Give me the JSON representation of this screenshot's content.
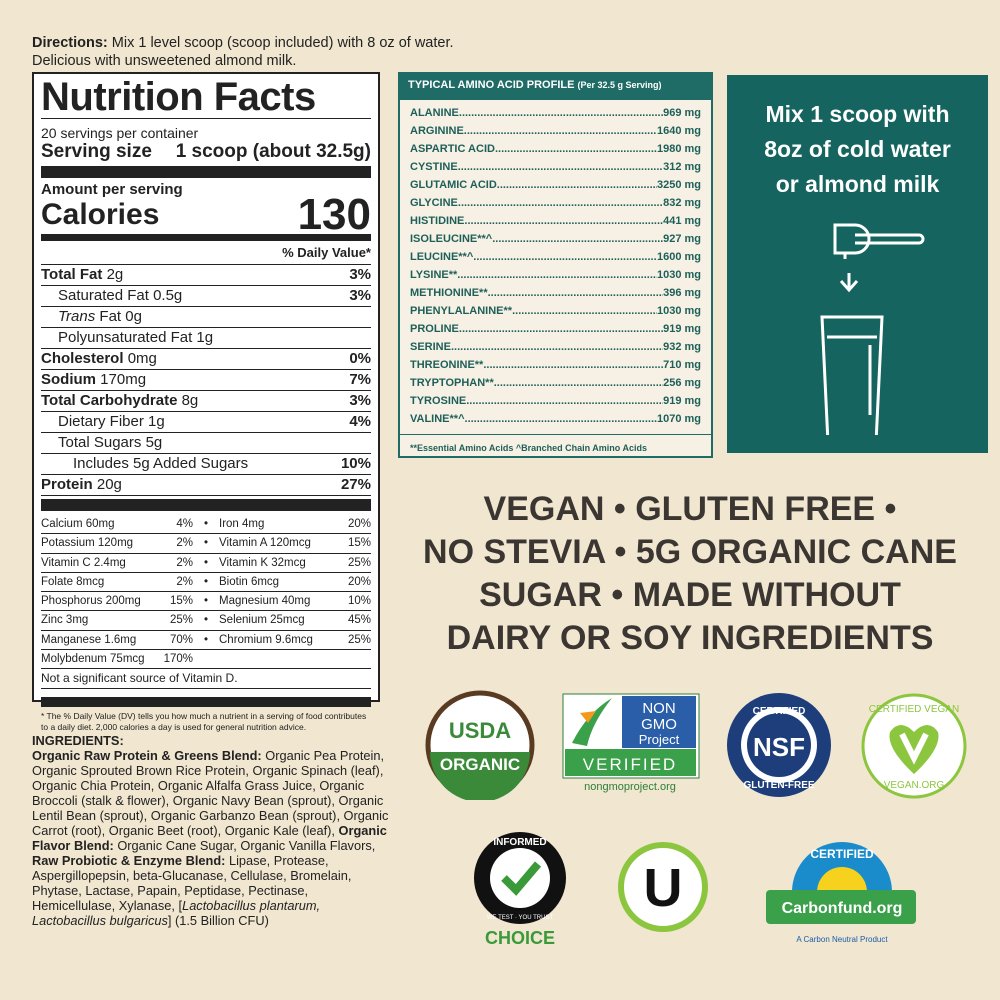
{
  "directions": {
    "label": "Directions:",
    "line1": "Mix 1 level scoop (scoop included) with 8 oz of water.",
    "line2": "Delicious with unsweetened almond milk."
  },
  "nutrition": {
    "title": "Nutrition Facts",
    "servings": "20 servings per container",
    "serving_size_label": "Serving size",
    "serving_size": "1 scoop (about 32.5g)",
    "amount_per_serving": "Amount per serving",
    "calories_label": "Calories",
    "calories": "130",
    "dv_header": "% Daily Value*",
    "rows": [
      {
        "name": "Total Fat",
        "amount": "2g",
        "pct": "3%",
        "bold": true,
        "indent": 0
      },
      {
        "name": "Saturated Fat",
        "amount": "0.5g",
        "pct": "3%",
        "bold": false,
        "indent": 1
      },
      {
        "name": "Trans",
        "amount": "Fat 0g",
        "pct": "",
        "bold": false,
        "indent": 1,
        "italic": true
      },
      {
        "name": "Polyunsaturated Fat",
        "amount": "1g",
        "pct": "",
        "bold": false,
        "indent": 1
      },
      {
        "name": "Cholesterol",
        "amount": "0mg",
        "pct": "0%",
        "bold": true,
        "indent": 0
      },
      {
        "name": "Sodium",
        "amount": "170mg",
        "pct": "7%",
        "bold": true,
        "indent": 0
      },
      {
        "name": "Total Carbohydrate",
        "amount": "8g",
        "pct": "3%",
        "bold": true,
        "indent": 0
      },
      {
        "name": "Dietary Fiber",
        "amount": "1g",
        "pct": "4%",
        "bold": false,
        "indent": 1
      },
      {
        "name": "Total Sugars",
        "amount": "5g",
        "pct": "",
        "bold": false,
        "indent": 1
      },
      {
        "name": "Includes 5g Added Sugars",
        "amount": "",
        "pct": "10%",
        "bold": false,
        "indent": 2
      },
      {
        "name": "Protein",
        "amount": "20g",
        "pct": "27%",
        "bold": true,
        "indent": 0
      }
    ],
    "minerals": [
      [
        "Calcium 60mg",
        "4%",
        "Iron 4mg",
        "20%"
      ],
      [
        "Potassium 120mg",
        "2%",
        "Vitamin A 120mcg",
        "15%"
      ],
      [
        "Vitamin C 2.4mg",
        "2%",
        "Vitamin K 32mcg",
        "25%"
      ],
      [
        "Folate 8mcg",
        "2%",
        "Biotin 6mcg",
        "20%"
      ],
      [
        "Phosphorus 200mg",
        "15%",
        "Magnesium 40mg",
        "10%"
      ],
      [
        "Zinc 3mg",
        "25%",
        "Selenium 25mcg",
        "45%"
      ],
      [
        "Manganese 1.6mg",
        "70%",
        "Chromium 9.6mcg",
        "25%"
      ],
      [
        "Molybdenum 75mcg",
        "170%",
        "",
        ""
      ]
    ],
    "not_significant": "Not a significant source of Vitamin D.",
    "footnote": "* The % Daily Value (DV) tells you how much a nutrient in a serving of food contributes to a daily diet. 2,000 calories a day is used for general nutrition advice."
  },
  "ingredients": [
    {
      "t": "INGREDIENTS:",
      "b": true
    },
    {
      "t": " ",
      "b": false
    },
    {
      "t": "Organic Raw Protein & Greens Blend:",
      "b": true
    },
    {
      "t": " Organic Pea Protein, Organic Sprouted Brown Rice Protein, Organic Spinach (leaf), Organic Chia Protein, Organic Alfalfa Grass Juice, Organic Broccoli (stalk & flower), Organic Navy Bean (sprout), Organic Lentil Bean (sprout), Organic Garbanzo Bean (sprout), Organic Carrot (root), Organic Beet (root), Organic Kale (leaf), ",
      "b": false
    },
    {
      "t": "Organic Flavor Blend:",
      "b": true
    },
    {
      "t": " Organic Cane Sugar, Organic Vanilla Flavors, ",
      "b": false
    },
    {
      "t": "Raw Probiotic & Enzyme Blend:",
      "b": true
    },
    {
      "t": " Lipase, Protease, Aspergillopepsin, beta-Glucanase, Cellulase, Bromelain, Phytase, Lactase, Papain, Peptidase, Pectinase, Hemicellulase, Xylanase, [",
      "b": false
    },
    {
      "t": "Lactobacillus plantarum, Lactobacillus bulgaricus",
      "i": true
    },
    {
      "t": "] (1.5 Billion CFU)",
      "b": false
    }
  ],
  "amino": {
    "title": "TYPICAL AMINO ACID PROFILE",
    "subtitle": "(Per 32.5 g Serving)",
    "rows": [
      [
        "ALANINE",
        "969 mg"
      ],
      [
        "ARGININE",
        "1640 mg"
      ],
      [
        "ASPARTIC ACID",
        "1980 mg"
      ],
      [
        "CYSTINE",
        "312 mg"
      ],
      [
        "GLUTAMIC ACID",
        "3250 mg"
      ],
      [
        "GLYCINE",
        "832 mg"
      ],
      [
        "HISTIDINE",
        "441 mg"
      ],
      [
        "ISOLEUCINE**^",
        "927 mg"
      ],
      [
        "LEUCINE**^",
        "1600 mg"
      ],
      [
        "LYSINE**",
        "1030 mg"
      ],
      [
        "METHIONINE**",
        "396 mg"
      ],
      [
        "PHENYLALANINE**",
        "1030 mg"
      ],
      [
        "PROLINE",
        "919 mg"
      ],
      [
        "SERINE",
        "932 mg"
      ],
      [
        "THREONINE**",
        "710 mg"
      ],
      [
        "TRYPTOPHAN**",
        "256 mg"
      ],
      [
        "TYROSINE",
        "919 mg"
      ],
      [
        "VALINE**^",
        "1070 mg"
      ]
    ],
    "footnote": "**Essential Amino Acids ^Branched Chain Amino Acids"
  },
  "mix": {
    "line1": "Mix 1 scoop with",
    "line2": "8oz of cold water",
    "line3": "or almond milk"
  },
  "claims": [
    "VEGAN • GLUTEN FREE •",
    "NO STEVIA • 5G ORGANIC CANE",
    "SUGAR  • MADE WITHOUT",
    "DAIRY OR SOY INGREDIENTS"
  ],
  "logos": {
    "usda": [
      "USDA",
      "ORGANIC"
    ],
    "nongmo": [
      "NON",
      "GMO",
      "Project",
      "VERIFIED",
      "nongmoproject.org"
    ],
    "nsf": [
      "CERTIFIED",
      "NSF",
      "GLUTEN-FREE"
    ],
    "vegan": [
      "CERTIFIED VEGAN",
      "VEGAN.ORG"
    ],
    "informed": [
      "INFORMED",
      "WE TEST · YOU TRUST",
      "CHOICE"
    ],
    "kosher": "U",
    "carbon": [
      "CERTIFIED",
      "Carbonfund.org",
      "A Carbon Neutral Product"
    ]
  },
  "colors": {
    "teal": "#15645f",
    "background": "#f1e6d0",
    "usda_green": "#3a8a3a",
    "nsf_blue": "#1d3e7a",
    "vegan_green": "#8cc63f",
    "carbon_blue": "#1a8ccc"
  }
}
